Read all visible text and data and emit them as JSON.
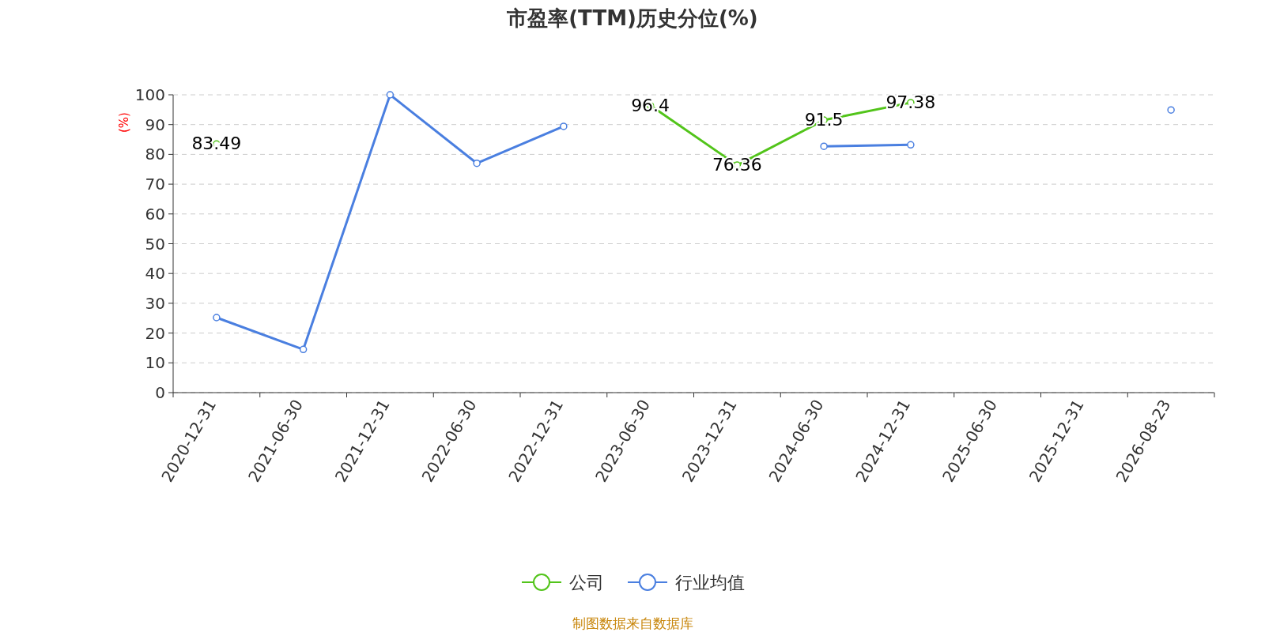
{
  "chart_data": {
    "type": "line",
    "title": "市盈率(TTM)历史分位(%)",
    "ylabel": "(%)",
    "categories": [
      "2020-12-31",
      "2021-06-30",
      "2021-12-31",
      "2022-06-30",
      "2022-12-31",
      "2023-06-30",
      "2023-12-31",
      "2024-06-30",
      "2024-12-31",
      "2025-06-30",
      "2025-12-31",
      "2026-08-23"
    ],
    "series": [
      {
        "name": "公司",
        "color": "#52c41a",
        "values": [
          83.49,
          null,
          null,
          null,
          null,
          96.4,
          76.36,
          91.5,
          97.38,
          null,
          null,
          null
        ],
        "value_labels": [
          "83.49",
          null,
          null,
          null,
          null,
          "96.4",
          "76.36",
          "91.5",
          "97.38",
          null,
          null,
          null
        ]
      },
      {
        "name": "行业均值",
        "color": "#4a7fe0",
        "values": [
          25.2,
          14.5,
          100,
          77,
          89.4,
          null,
          null,
          82.7,
          83.2,
          null,
          null,
          94.9
        ]
      }
    ],
    "ylim": [
      0,
      100
    ],
    "yticks": [
      0,
      10,
      20,
      30,
      40,
      50,
      60,
      70,
      80,
      90,
      100
    ],
    "grid": "y",
    "legend": "bottom",
    "marker": "circle",
    "line_style": "solid",
    "annotations": [
      "制图数据来自数据库"
    ]
  }
}
